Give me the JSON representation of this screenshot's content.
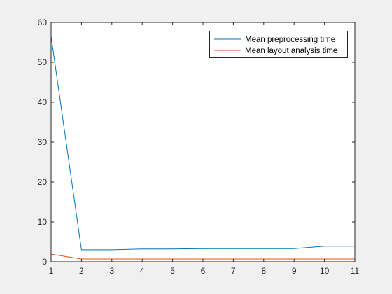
{
  "chart_data": {
    "type": "line",
    "title": "",
    "xlabel": "",
    "ylabel": "",
    "x": [
      1,
      2,
      3,
      4,
      5,
      6,
      7,
      8,
      9,
      10,
      11
    ],
    "xlim": [
      1,
      11
    ],
    "ylim": [
      0,
      60
    ],
    "xticks": [
      1,
      2,
      3,
      4,
      5,
      6,
      7,
      8,
      9,
      10,
      11
    ],
    "yticks": [
      0,
      10,
      20,
      30,
      40,
      50,
      60
    ],
    "grid": false,
    "legend_position": "top-right",
    "series": [
      {
        "name": "Mean preprocessing time",
        "color": "#0072BD",
        "values": [
          56.5,
          3.0,
          3.0,
          3.2,
          3.2,
          3.3,
          3.3,
          3.3,
          3.3,
          3.9,
          3.9
        ]
      },
      {
        "name": "Mean layout analysis time",
        "color": "#D95319",
        "values": [
          1.9,
          0.7,
          0.7,
          0.7,
          0.7,
          0.7,
          0.7,
          0.7,
          0.7,
          0.7,
          0.7
        ]
      }
    ]
  }
}
